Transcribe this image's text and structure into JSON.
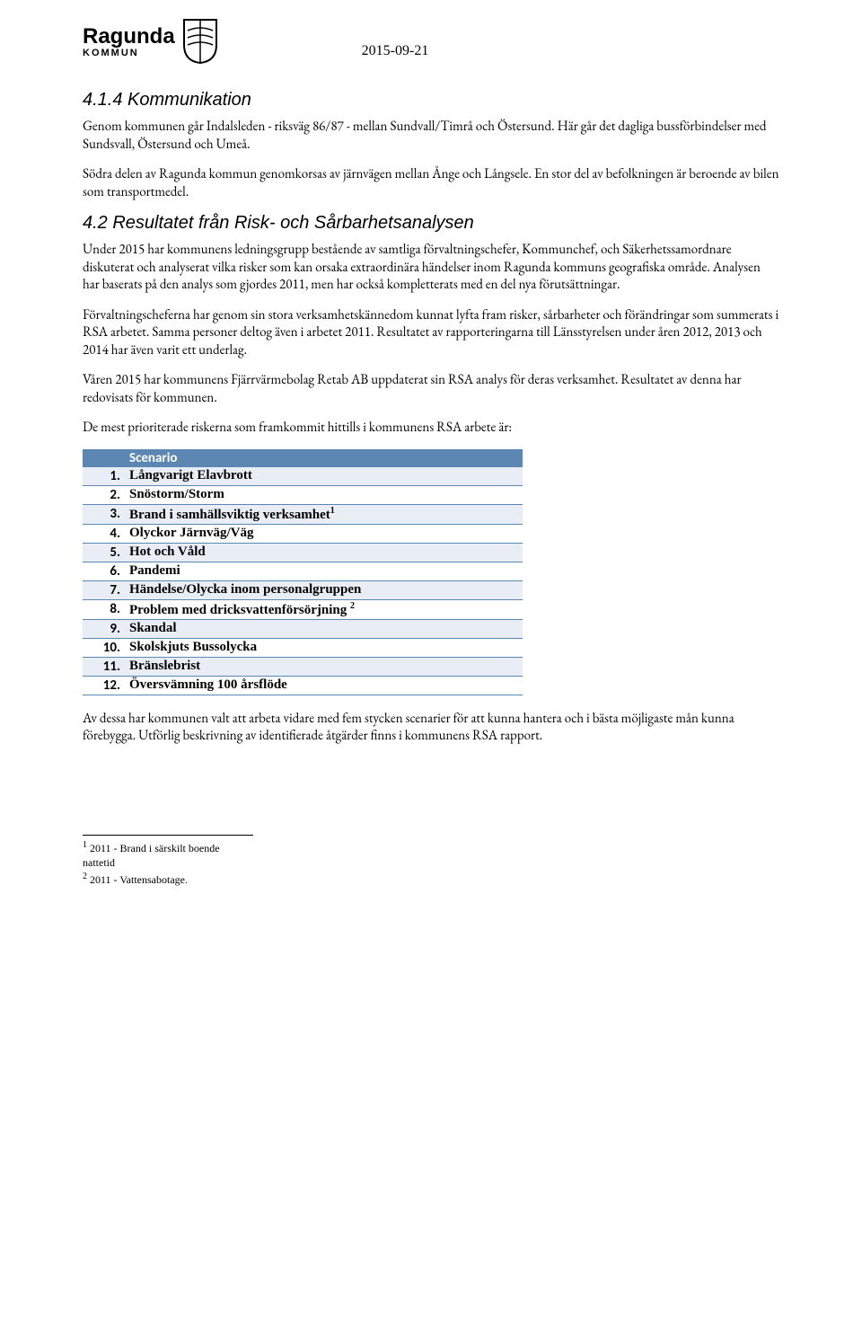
{
  "header": {
    "logo_text": "Ragunda",
    "logo_subtext": "KOMMUN",
    "date": "2015-09-21"
  },
  "section1": {
    "title": "4.1.4 Kommunikation",
    "p1": "Genom kommunen går Indalsleden - riksväg 86/87 - mellan Sundvall/Timrå och Östersund. Här går det dagliga bussförbindelser med Sundsvall, Östersund och Umeå.",
    "p2": "Södra delen av Ragunda kommun genomkorsas av järnvägen mellan Ånge och Långsele. En stor del av befolkningen är beroende av bilen som transportmedel."
  },
  "section2": {
    "title": "4.2 Resultatet från Risk- och Sårbarhetsanalysen",
    "p1": "Under 2015 har kommunens ledningsgrupp bestående av samtliga förvaltningschefer, Kommunchef, och Säkerhetssamordnare diskuterat och analyserat vilka risker som kan orsaka extraordinära händelser inom Ragunda kommuns geografiska område. Analysen har baserats på den analys som gjordes 2011, men har också kompletterats med en del nya förutsättningar.",
    "p2": "Förvaltningscheferna har genom sin stora verksamhetskännedom kunnat lyfta fram risker, sårbarheter och förändringar som summerats i RSA arbetet. Samma personer deltog även i arbetet 2011. Resultatet av rapporteringarna till Länsstyrelsen under åren 2012, 2013 och 2014 har även varit ett underlag.",
    "p3": "Våren 2015 har kommunens Fjärrvärmebolag Retab AB uppdaterat sin RSA analys för deras verksamhet. Resultatet av denna har redovisats för kommunen.",
    "p4": "De mest prioriterade riskerna som framkommit hittills i kommunens RSA arbete är:"
  },
  "risk_table": {
    "header_label": "Scenario",
    "header_bg": "#5b87b2",
    "header_fg": "#ffffff",
    "row_odd_bg": "#e9edf5",
    "row_even_bg": "#ffffff",
    "border_color": "#5b87b2",
    "rows": [
      {
        "n": "1.",
        "text": "Långvarigt Elavbrott"
      },
      {
        "n": "2.",
        "text": "Snöstorm/Storm"
      },
      {
        "n": "3.",
        "text": "Brand i samhällsviktig verksamhet",
        "sup": "1"
      },
      {
        "n": "4.",
        "text": "Olyckor Järnväg/Väg"
      },
      {
        "n": "5.",
        "text": "Hot och Våld"
      },
      {
        "n": "6.",
        "text": "Pandemi"
      },
      {
        "n": "7.",
        "text": "Händelse/Olycka inom personalgruppen"
      },
      {
        "n": "8.",
        "text": "Problem med dricksvattenförsörjning ",
        "sup": "2"
      },
      {
        "n": "9.",
        "text": "Skandal"
      },
      {
        "n": "10.",
        "text": "Skolskjuts Bussolycka"
      },
      {
        "n": "11.",
        "text": "Bränslebrist"
      },
      {
        "n": "12.",
        "text": "Översvämning 100 årsflöde"
      }
    ]
  },
  "closing_paragraph": "Av dessa har kommunen valt att arbeta vidare med fem stycken scenarier för att kunna hantera och i bästa möjligaste mån kunna förebygga. Utförlig beskrivning av identifierade åtgärder finns i kommunens RSA rapport.",
  "footnotes": {
    "f1": "2011 - Brand i särskilt boende nattetid",
    "f2": "2011 - Vattensabotage."
  }
}
